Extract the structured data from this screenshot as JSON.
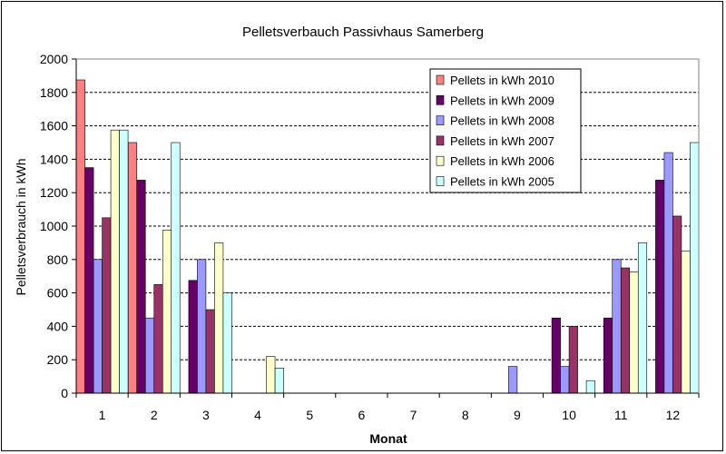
{
  "chart_data": {
    "type": "bar",
    "title": "Pelletsverbauch Passivhaus Samerberg",
    "xlabel": "Monat",
    "ylabel": "Pelletsverbrauch in kWh",
    "ylim": [
      0,
      2000
    ],
    "ytick_step": 200,
    "grid": "horizontal-dashed",
    "legend_position": "top-right",
    "categories": [
      "1",
      "2",
      "3",
      "4",
      "5",
      "6",
      "7",
      "8",
      "9",
      "10",
      "11",
      "12"
    ],
    "series": [
      {
        "name": "Pellets in kWh 2010",
        "color": "#ff8080",
        "values": [
          1875,
          1500,
          0,
          0,
          0,
          0,
          0,
          0,
          0,
          0,
          0,
          0
        ]
      },
      {
        "name": "Pellets in kWh 2009",
        "color": "#660066",
        "values": [
          1350,
          1275,
          675,
          0,
          0,
          0,
          0,
          0,
          0,
          450,
          450,
          1275
        ]
      },
      {
        "name": "Pellets in kWh 2008",
        "color": "#9999ff",
        "values": [
          800,
          450,
          800,
          0,
          0,
          0,
          0,
          0,
          160,
          160,
          800,
          1440
        ]
      },
      {
        "name": "Pellets in kWh 2007",
        "color": "#993366",
        "values": [
          1050,
          650,
          500,
          0,
          0,
          0,
          0,
          0,
          0,
          400,
          750,
          1060
        ]
      },
      {
        "name": "Pellets in kWh 2006",
        "color": "#ffffcc",
        "values": [
          1575,
          975,
          900,
          220,
          0,
          0,
          0,
          0,
          0,
          0,
          725,
          850
        ]
      },
      {
        "name": "Pellets in kWh 2005",
        "color": "#ccffff",
        "values": [
          1575,
          1500,
          600,
          150,
          0,
          0,
          0,
          0,
          0,
          75,
          900,
          1500
        ]
      }
    ]
  }
}
